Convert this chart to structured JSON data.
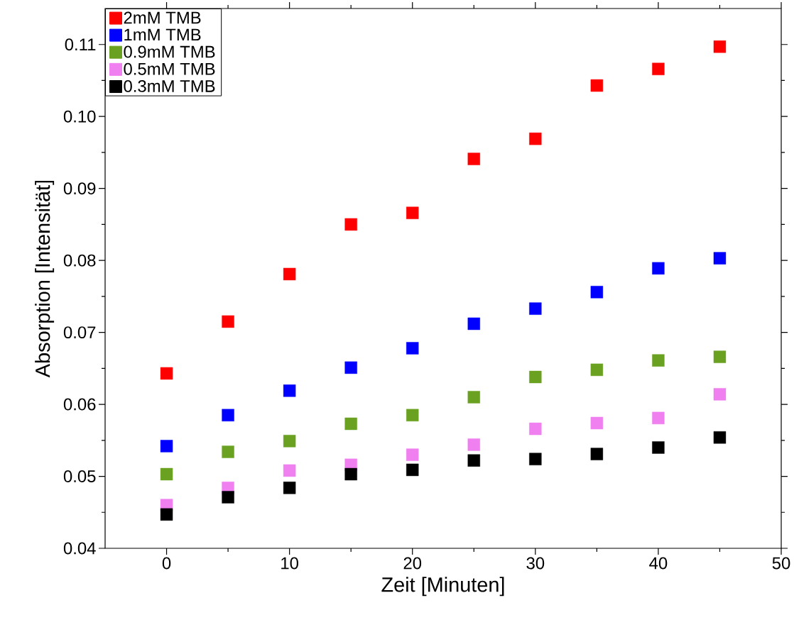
{
  "chart_data": {
    "type": "scatter",
    "xlabel": "Zeit [Minuten]",
    "ylabel": "Absorption [Intensität]",
    "x": [
      0,
      5,
      10,
      15,
      20,
      25,
      30,
      35,
      40,
      45
    ],
    "series": [
      {
        "name": "2mM TMB",
        "color": "#ff0000",
        "values": [
          0.0643,
          0.0715,
          0.0781,
          0.085,
          0.0866,
          0.0941,
          0.0969,
          0.1043,
          0.1066,
          0.1097
        ]
      },
      {
        "name": "1mM TMB",
        "color": "#0000ff",
        "values": [
          0.0542,
          0.0585,
          0.0619,
          0.0651,
          0.0678,
          0.0712,
          0.0733,
          0.0756,
          0.0789,
          0.0803
        ]
      },
      {
        "name": "0.9mM TMB",
        "color": "#6aa121",
        "values": [
          0.0503,
          0.0534,
          0.0549,
          0.0573,
          0.0585,
          0.061,
          0.0638,
          0.0648,
          0.0661,
          0.0666
        ]
      },
      {
        "name": "0.5mM TMB",
        "color": "#f07ff0",
        "values": [
          0.046,
          0.0484,
          0.0508,
          0.0516,
          0.053,
          0.0544,
          0.0566,
          0.0574,
          0.0581,
          0.0614
        ]
      },
      {
        "name": "0.3mM TMB",
        "color": "#000000",
        "values": [
          0.0447,
          0.0471,
          0.0484,
          0.0503,
          0.0509,
          0.0522,
          0.0524,
          0.0531,
          0.054,
          0.0554
        ]
      }
    ],
    "xlim": [
      -5,
      50
    ],
    "ylim": [
      0.04,
      0.115
    ],
    "xticks": [
      0,
      10,
      20,
      30,
      40,
      50
    ],
    "yticks": [
      0.04,
      0.05,
      0.06,
      0.07,
      0.08,
      0.09,
      {
        "value": 0.1,
        "label": "0.10"
      },
      0.11
    ],
    "marker": "square",
    "legend": "top left",
    "grid": false
  }
}
